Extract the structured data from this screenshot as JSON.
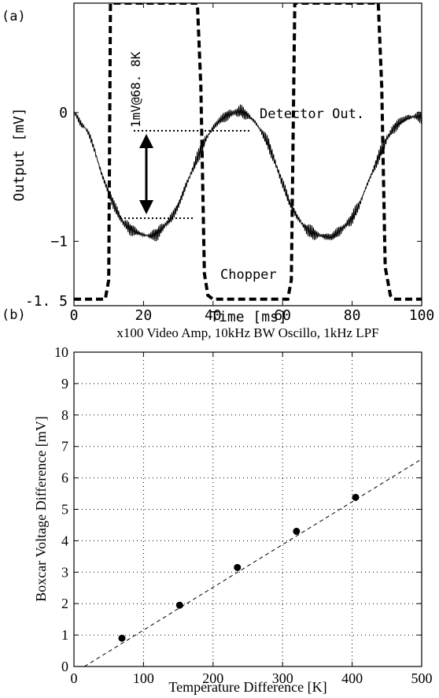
{
  "chart_data": [
    {
      "panel_label": "(a)",
      "type": "line",
      "title": "",
      "xlabel": "Time [ms]",
      "ylabel": "Output [mV]",
      "xlim": [
        0,
        100
      ],
      "ylim": [
        -1.5,
        0.85
      ],
      "x_ticks": [
        0,
        20,
        40,
        60,
        80,
        100
      ],
      "x_tick_labels": [
        "0",
        "20",
        "40",
        "60",
        "80",
        "100"
      ],
      "y_ticks": [
        -1.5,
        -1,
        0
      ],
      "y_tick_labels": [
        "-1. 5",
        "−1",
        "0"
      ],
      "grid": false,
      "annotations": [
        "Detector Out.",
        "Chopper",
        "1mV@68. 8K"
      ],
      "series": [
        {
          "name": "Detector Out.",
          "style": "solid",
          "x": [
            0,
            3,
            6,
            8,
            10,
            12,
            14,
            16,
            18,
            20,
            22,
            24,
            26,
            28,
            30,
            32,
            34,
            36,
            38,
            40,
            42,
            44,
            46,
            48,
            50,
            52,
            54,
            56,
            58,
            60,
            62,
            64,
            66,
            68,
            70,
            72,
            74,
            76,
            78,
            80,
            82,
            84,
            86,
            88,
            90,
            92,
            94,
            96,
            98,
            100
          ],
          "y": [
            -0.03,
            -0.12,
            -0.3,
            -0.48,
            -0.62,
            -0.75,
            -0.85,
            -0.9,
            -0.93,
            -0.95,
            -0.96,
            -0.94,
            -0.88,
            -0.82,
            -0.72,
            -0.58,
            -0.45,
            -0.32,
            -0.2,
            -0.12,
            -0.06,
            -0.02,
            0.0,
            0.01,
            -0.02,
            -0.07,
            -0.15,
            -0.25,
            -0.4,
            -0.55,
            -0.7,
            -0.8,
            -0.88,
            -0.93,
            -0.95,
            -0.96,
            -0.97,
            -0.93,
            -0.88,
            -0.82,
            -0.72,
            -0.58,
            -0.45,
            -0.32,
            -0.2,
            -0.12,
            -0.07,
            -0.04,
            -0.03,
            -0.03
          ]
        },
        {
          "name": "Chopper",
          "style": "dashed",
          "x": [
            0,
            9,
            10,
            10.5,
            35.5,
            36.5,
            37.5,
            38.5,
            40,
            61.5,
            62.5,
            63.5,
            87.5,
            88.5,
            89.5,
            91,
            92,
            100
          ],
          "y": [
            -1.45,
            -1.45,
            -1.3,
            0.85,
            0.85,
            0.2,
            -1.25,
            -1.42,
            -1.45,
            -1.45,
            -1.3,
            0.85,
            0.85,
            0.2,
            -1.2,
            -1.42,
            -1.45,
            -1.45
          ]
        }
      ]
    },
    {
      "panel_label": "(b)",
      "type": "scatter",
      "title": "x100 Video Amp, 10kHz BW Oscillo, 1kHz LPF",
      "xlabel": "Temperature Difference [K]",
      "ylabel": "Boxcar Voltage Difference [mV]",
      "xlim": [
        0,
        500
      ],
      "ylim": [
        0,
        10
      ],
      "x_ticks": [
        0,
        100,
        200,
        300,
        400,
        500
      ],
      "y_ticks": [
        0,
        1,
        2,
        3,
        4,
        5,
        6,
        7,
        8,
        9,
        10
      ],
      "grid": true,
      "points": [
        {
          "x": 69,
          "y": 0.9
        },
        {
          "x": 152,
          "y": 1.95
        },
        {
          "x": 235,
          "y": 3.15
        },
        {
          "x": 320,
          "y": 4.3
        },
        {
          "x": 405,
          "y": 5.38
        }
      ],
      "fit_line": {
        "x": [
          15,
          500
        ],
        "y": [
          0,
          6.6
        ],
        "style": "dashed"
      }
    }
  ]
}
